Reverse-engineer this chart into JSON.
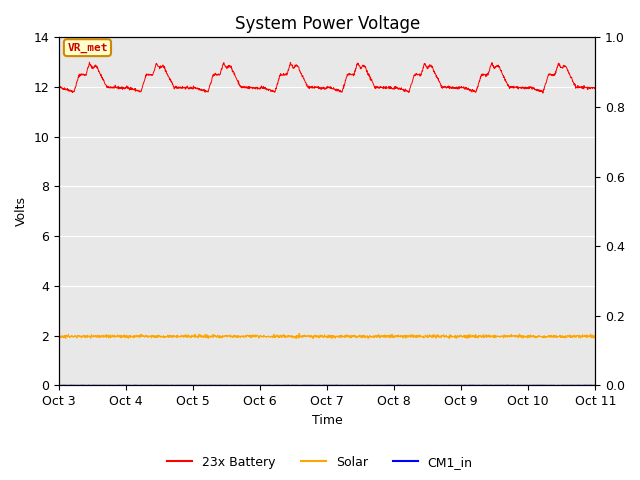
{
  "title": "System Power Voltage",
  "xlabel": "Time",
  "ylabel": "Volts",
  "annotation_text": "VR_met",
  "annotation_bg": "#FFFFCC",
  "annotation_border": "#CC8800",
  "annotation_text_color": "#CC0000",
  "ylim_left": [
    0,
    14
  ],
  "ylim_right": [
    0.0,
    1.0
  ],
  "yticks_left": [
    0,
    2,
    4,
    6,
    8,
    10,
    12,
    14
  ],
  "yticks_right": [
    0.0,
    0.2,
    0.4,
    0.6,
    0.8,
    1.0
  ],
  "xtick_labels": [
    "Oct 3",
    "Oct 4",
    "Oct 5",
    "Oct 6",
    "Oct 7",
    "Oct 8",
    "Oct 9",
    "Oct 10",
    "Oct 11"
  ],
  "xtick_positions": [
    0,
    1,
    2,
    3,
    4,
    5,
    6,
    7,
    8
  ],
  "legend_labels": [
    "23x Battery",
    "Solar",
    "CM1_in"
  ],
  "legend_colors": [
    "#FF0000",
    "#FFA500",
    "#0000FF"
  ],
  "line_battery_color": "#FF0000",
  "line_solar_color": "#FFA500",
  "line_cm1_color": "#0000FF",
  "bg_color": "#E8E8E8",
  "grid_color": "#FFFFFF",
  "title_fontsize": 12,
  "axis_label_fontsize": 9,
  "tick_fontsize": 9
}
